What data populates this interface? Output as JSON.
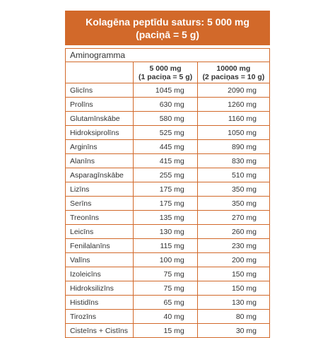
{
  "header": {
    "title": "Kolagēna peptīdu saturs: 5 000 mg",
    "subtitle": "(paciņā = 5 g)"
  },
  "table": {
    "caption": "Aminogramma",
    "columns": [
      [
        "5 000 mg",
        "(1 paciņa = 5 g)"
      ],
      [
        "10000 mg",
        "(2 paciņas = 10 g)"
      ]
    ],
    "rows": [
      [
        "Glicīns",
        "1045 mg",
        "2090 mg"
      ],
      [
        "Prolīns",
        "630 mg",
        "1260 mg"
      ],
      [
        "Glutamīnskābe",
        "580 mg",
        "1160 mg"
      ],
      [
        "Hidroksiprolīns",
        "525 mg",
        "1050 mg"
      ],
      [
        "Arginīns",
        "445 mg",
        "890 mg"
      ],
      [
        "Alanīns",
        "415 mg",
        "830 mg"
      ],
      [
        "Asparagīnskābe",
        "255 mg",
        "510 mg"
      ],
      [
        "Lizīns",
        "175 mg",
        "350 mg"
      ],
      [
        "Serīns",
        "175 mg",
        "350 mg"
      ],
      [
        "Treonīns",
        "135 mg",
        "270 mg"
      ],
      [
        "Leicīns",
        "130 mg",
        "260 mg"
      ],
      [
        "Fenilalanīns",
        "115 mg",
        "230 mg"
      ],
      [
        "Valīns",
        "100 mg",
        "200 mg"
      ],
      [
        "Izoleicīns",
        "75 mg",
        "150 mg"
      ],
      [
        "Hidroksilizīns",
        "75 mg",
        "150 mg"
      ],
      [
        "Histidīns",
        "65 mg",
        "130 mg"
      ],
      [
        "Tirozīns",
        "40 mg",
        "80 mg"
      ],
      [
        "Cisteīns + Cistīns",
        "15 mg",
        "30 mg"
      ]
    ]
  }
}
